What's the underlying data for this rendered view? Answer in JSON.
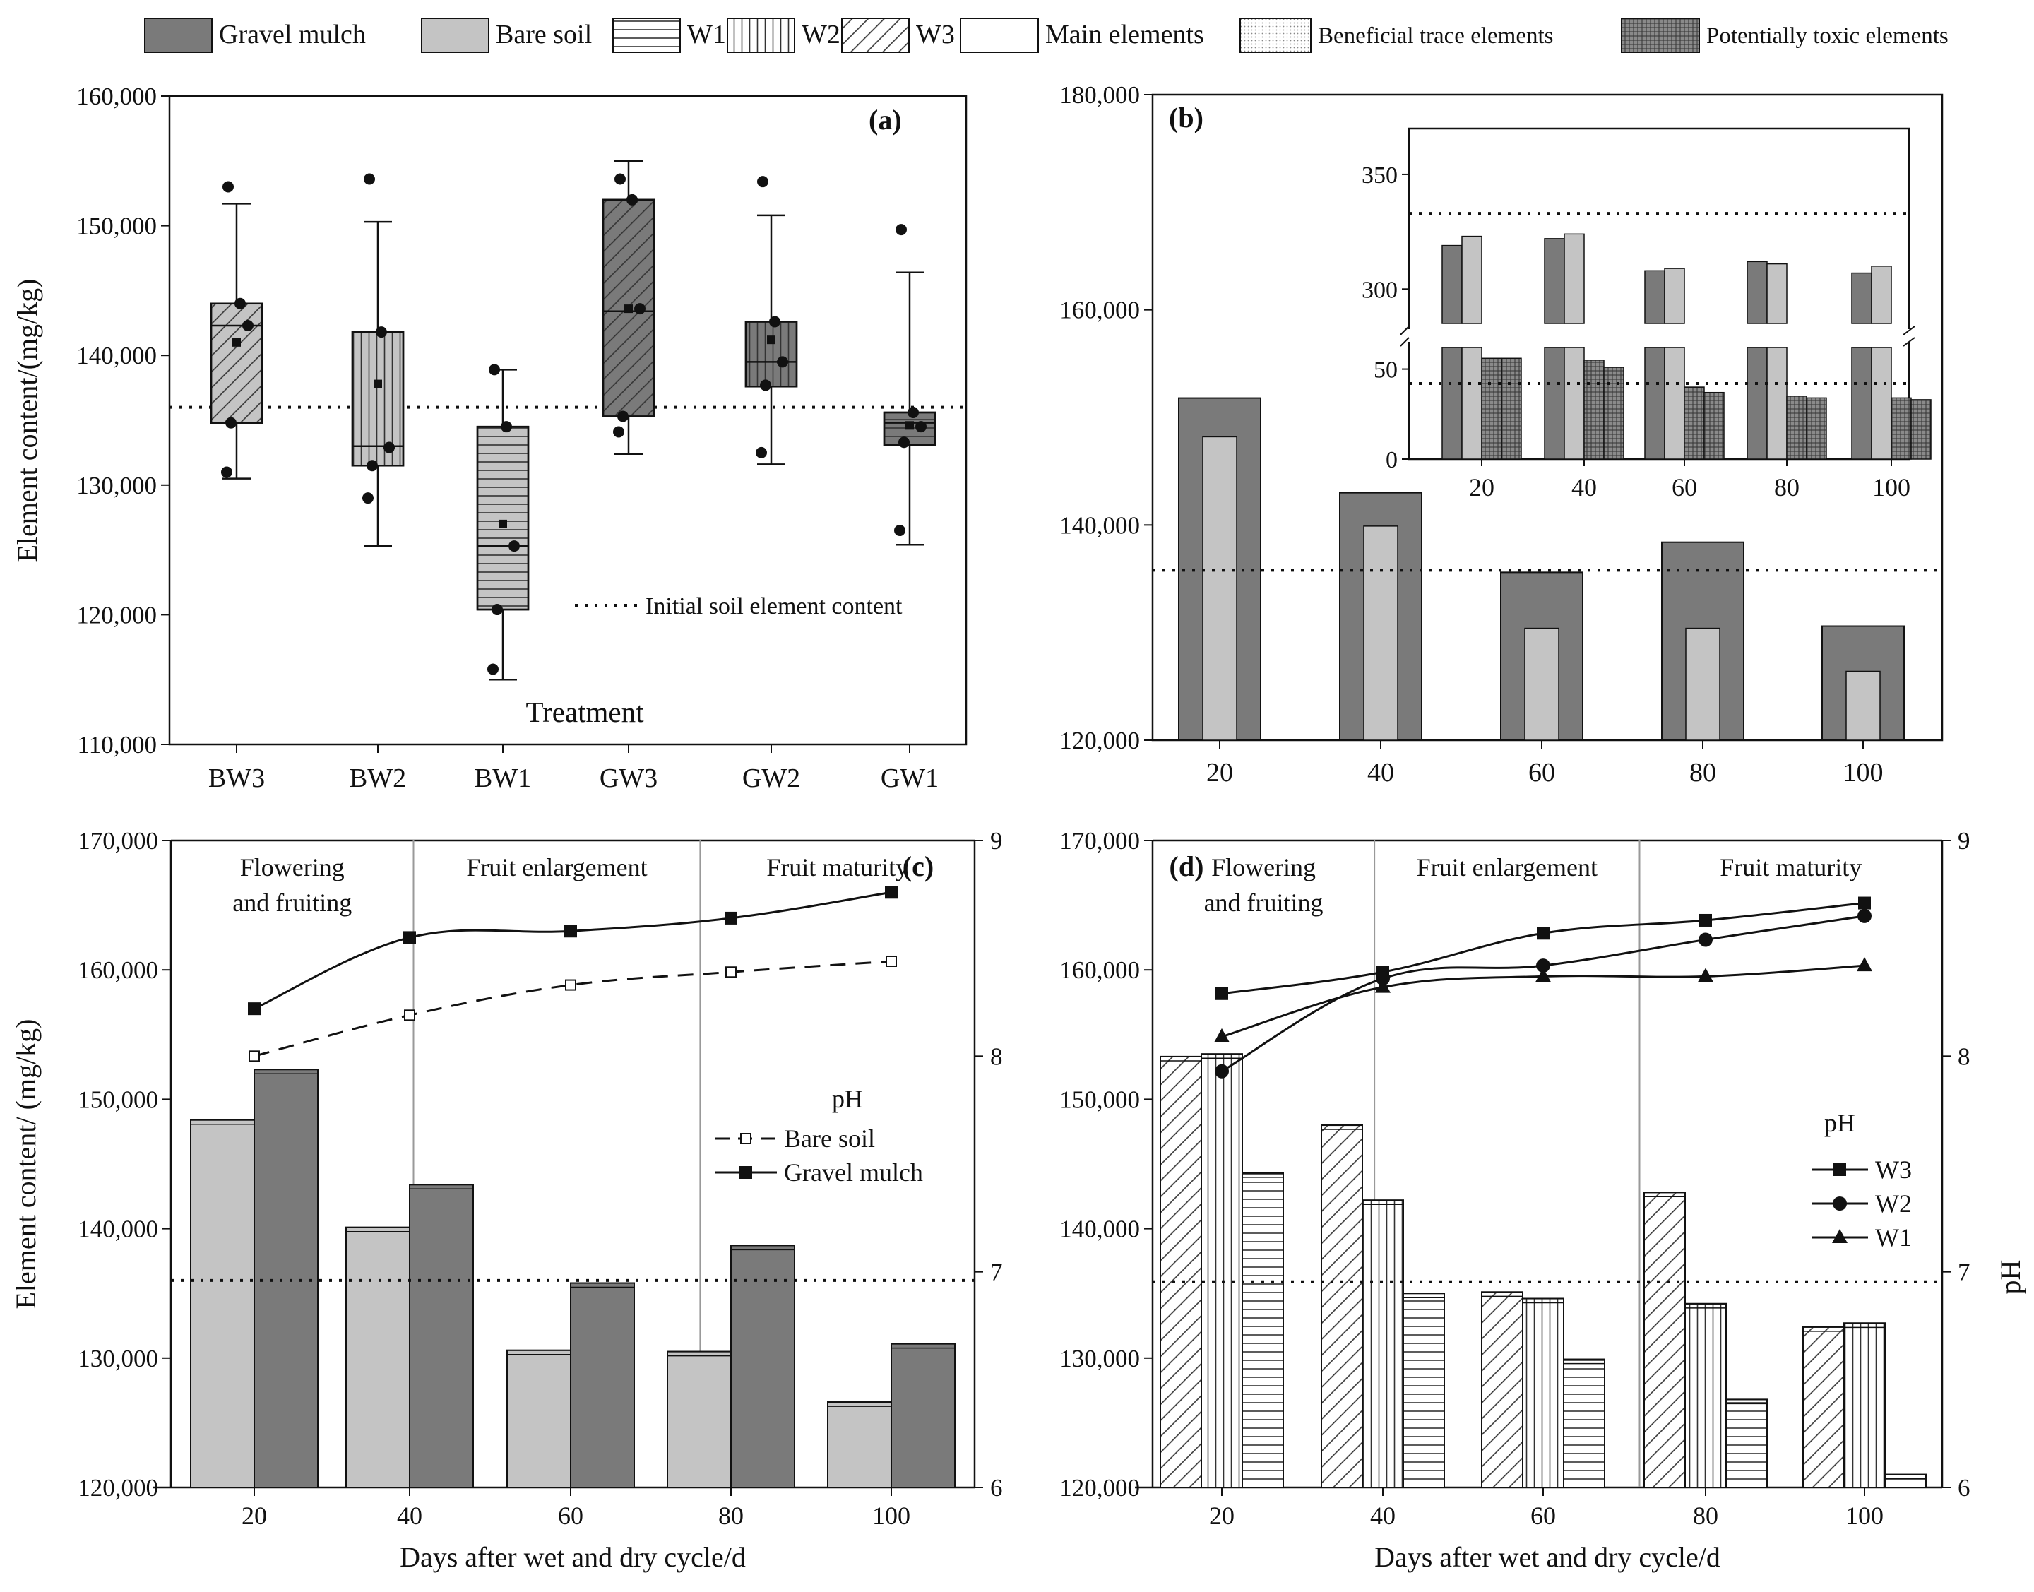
{
  "legend": {
    "items": [
      {
        "label": "Gravel mulch",
        "swatch": "gravel"
      },
      {
        "label": "Bare soil",
        "swatch": "bare"
      },
      {
        "label": "W1",
        "swatch": "w1"
      },
      {
        "label": "W2",
        "swatch": "w2"
      },
      {
        "label": "W3",
        "swatch": "w3"
      },
      {
        "label": "Main elements",
        "swatch": "main"
      },
      {
        "label": "Beneficial trace elements",
        "swatch": "beneficial"
      },
      {
        "label": "Potentially toxic elements",
        "swatch": "toxic"
      }
    ]
  },
  "colors": {
    "gravel": "#7a7a7a",
    "bare": "#c4c4c4",
    "axis": "#111111",
    "initial_line": "#111111"
  },
  "chart_data": [
    {
      "panel": "(a)",
      "type": "box",
      "xlabel": "Treatment",
      "ylabel": "Element content/(mg/kg)",
      "ylim": [
        110000,
        160000
      ],
      "yticks": [
        "110,000",
        "120,000",
        "130,000",
        "140,000",
        "150,000",
        "160,000"
      ],
      "yticks_values": [
        110000,
        120000,
        130000,
        140000,
        150000,
        160000
      ],
      "reference_line": {
        "value": 136000,
        "label": "Initial soil element content"
      },
      "boxes": [
        {
          "category": "BW3",
          "fill": "bare",
          "pattern": "w3",
          "whisker_low": 130500,
          "q1": 134800,
          "median": 142300,
          "q3": 144000,
          "whisker_high": 151700,
          "mean": 141000,
          "points": [
            153000,
            144000,
            142300,
            134800,
            131000
          ]
        },
        {
          "category": "BW2",
          "fill": "bare",
          "pattern": "w2",
          "whisker_low": 125300,
          "q1": 131500,
          "median": 133000,
          "q3": 141800,
          "whisker_high": 150300,
          "mean": 137800,
          "points": [
            153600,
            141800,
            132900,
            131500,
            129000
          ]
        },
        {
          "category": "BW1",
          "fill": "bare",
          "pattern": "w1",
          "whisker_low": 115000,
          "q1": 120400,
          "median": 125300,
          "q3": 134500,
          "whisker_high": 138900,
          "mean": 127000,
          "points": [
            138900,
            134500,
            125300,
            120400,
            115800
          ]
        },
        {
          "category": "GW3",
          "fill": "gravel",
          "pattern": "w3",
          "whisker_low": 132400,
          "q1": 135300,
          "median": 143400,
          "q3": 152000,
          "whisker_high": 155000,
          "mean": 143600,
          "points": [
            153600,
            152000,
            143600,
            135300,
            134100
          ]
        },
        {
          "category": "GW2",
          "fill": "gravel",
          "pattern": "w2",
          "whisker_low": 131600,
          "q1": 137600,
          "median": 139500,
          "q3": 142600,
          "whisker_high": 150800,
          "mean": 141200,
          "points": [
            153400,
            142600,
            139500,
            137700,
            132500
          ]
        },
        {
          "category": "GW1",
          "fill": "gravel",
          "pattern": "w1",
          "whisker_low": 125400,
          "q1": 133100,
          "median": 134800,
          "q3": 135600,
          "whisker_high": 146400,
          "mean": 134600,
          "points": [
            149700,
            135600,
            134500,
            133300,
            126500
          ]
        }
      ]
    },
    {
      "panel": "(b)",
      "type": "bar",
      "categories": [
        "20",
        "40",
        "60",
        "80",
        "100"
      ],
      "ylim": [
        120000,
        180000
      ],
      "yticks": [
        "120,000",
        "140,000",
        "160,000",
        "180,000"
      ],
      "yticks_values": [
        120000,
        140000,
        160000,
        180000
      ],
      "reference_line": {
        "value": 135800
      },
      "series": [
        {
          "name": "Gravel mulch",
          "color": "gravel",
          "values": [
            151800,
            143000,
            135600,
            138400,
            130600
          ]
        },
        {
          "name": "Bare soil",
          "color": "bare",
          "values": [
            148200,
            139900,
            130400,
            130400,
            126400
          ]
        }
      ],
      "inset": {
        "categories": [
          "20",
          "40",
          "60",
          "80",
          "100"
        ],
        "upper_ticks": [
          "300",
          "350"
        ],
        "upper_ticks_values": [
          300,
          350
        ],
        "lower_ticks": [
          "0",
          "50"
        ],
        "lower_ticks_values": [
          0,
          50
        ],
        "upper_range": [
          285,
          370
        ],
        "lower_range": [
          0,
          62
        ],
        "ref_upper": 333,
        "ref_lower": 42,
        "beneficial": {
          "gravel": [
            319,
            322,
            308,
            312,
            307
          ],
          "bare": [
            323,
            324,
            309,
            311,
            310
          ]
        },
        "toxic": {
          "gravel": [
            56,
            55,
            40,
            35,
            34
          ],
          "bare": [
            56,
            51,
            37,
            34,
            33
          ]
        }
      }
    },
    {
      "panel": "(c)",
      "type": "bar",
      "categories": [
        "20",
        "40",
        "60",
        "80",
        "100"
      ],
      "xlabel": "Days after wet and dry cycle/d",
      "ylabel": "Element content/ (mg/kg)",
      "ylim": [
        120000,
        170000
      ],
      "yticks": [
        "120,000",
        "130,000",
        "140,000",
        "150,000",
        "160,000",
        "170,000"
      ],
      "yticks_values": [
        120000,
        130000,
        140000,
        150000,
        160000,
        170000
      ],
      "y2lim": [
        6,
        9
      ],
      "y2ticks": [
        "6",
        "7",
        "8",
        "9"
      ],
      "y2ticks_values": [
        6,
        7,
        8,
        9
      ],
      "reference_line": {
        "value": 136000
      },
      "stages": [
        {
          "label_lines": [
            "Flowering",
            "and fruiting"
          ],
          "from": 0,
          "to": 1.5
        },
        {
          "label_lines": [
            "Fruit enlargement"
          ],
          "from": 1.5,
          "to": 3.3
        },
        {
          "label_lines": [
            "Fruit maturity"
          ],
          "from": 3.3,
          "to": 5
        }
      ],
      "series": [
        {
          "name": "Bare soil",
          "color": "bare",
          "values": [
            148400,
            140100,
            130600,
            130500,
            126600
          ]
        },
        {
          "name": "Gravel mulch",
          "color": "gravel",
          "values": [
            152300,
            143400,
            135800,
            138700,
            131100
          ]
        }
      ],
      "ph_title": "pH",
      "ph_series": [
        {
          "name": "Bare soil",
          "marker": "open-square",
          "dash": true,
          "values": [
            8.0,
            8.19,
            8.33,
            8.39,
            8.44
          ]
        },
        {
          "name": "Gravel mulch",
          "marker": "filled-square",
          "dash": false,
          "values": [
            8.22,
            8.55,
            8.58,
            8.64,
            8.76
          ]
        }
      ]
    },
    {
      "panel": "(d)",
      "type": "bar",
      "categories": [
        "20",
        "40",
        "60",
        "80",
        "100"
      ],
      "xlabel": "Days after wet and dry cycle/d",
      "ylabel": "pH",
      "ylim": [
        120000,
        170000
      ],
      "yticks": [
        "120,000",
        "130,000",
        "140,000",
        "150,000",
        "160,000",
        "170,000"
      ],
      "yticks_values": [
        120000,
        130000,
        140000,
        150000,
        160000,
        170000
      ],
      "y2lim": [
        6,
        9
      ],
      "y2ticks": [
        "6",
        "7",
        "8",
        "9"
      ],
      "y2ticks_values": [
        6,
        7,
        8,
        9
      ],
      "reference_line": {
        "value": 135900
      },
      "stages": [
        {
          "label_lines": [
            "Flowering",
            "and fruiting"
          ],
          "from": 0,
          "to": 1.45
        },
        {
          "label_lines": [
            "Fruit enlargement"
          ],
          "from": 1.45,
          "to": 3.1
        },
        {
          "label_lines": [
            "Fruit maturity"
          ],
          "from": 3.1,
          "to": 5
        }
      ],
      "series": [
        {
          "name": "W3",
          "pattern": "w3",
          "values": [
            153300,
            148000,
            135100,
            142800,
            132400
          ]
        },
        {
          "name": "W2",
          "pattern": "w2",
          "values": [
            153500,
            142200,
            134600,
            134200,
            132700
          ]
        },
        {
          "name": "W1",
          "pattern": "w1",
          "values": [
            144300,
            135000,
            129900,
            126800,
            121000
          ]
        }
      ],
      "ph_title": "pH",
      "ph_series": [
        {
          "name": "W3",
          "marker": "square",
          "values": [
            8.29,
            8.39,
            8.57,
            8.63,
            8.71
          ]
        },
        {
          "name": "W2",
          "marker": "circle",
          "values": [
            7.93,
            8.36,
            8.42,
            8.54,
            8.65
          ]
        },
        {
          "name": "W1",
          "marker": "triangle",
          "values": [
            8.09,
            8.32,
            8.37,
            8.37,
            8.42
          ]
        }
      ]
    }
  ]
}
